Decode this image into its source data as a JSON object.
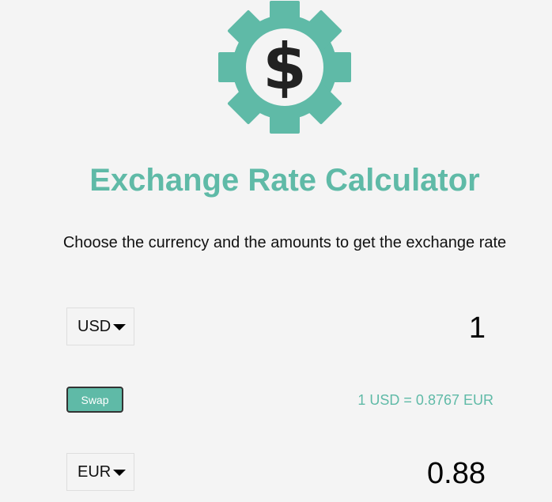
{
  "header": {
    "title": "Exchange Rate Calculator",
    "subtitle": "Choose the currency and the amounts to get the exchange rate"
  },
  "logo": {
    "icon": "dollar-gear-icon",
    "symbol": "$",
    "color": "#5fbaa7"
  },
  "currency_one": {
    "selected": "USD",
    "amount": "1"
  },
  "swap": {
    "label": "Swap"
  },
  "rate": {
    "text": "1 USD = 0.8767 EUR"
  },
  "currency_two": {
    "selected": "EUR",
    "amount": "0.88"
  },
  "colors": {
    "accent": "#5fbaa7",
    "background": "#f4f4f4"
  }
}
